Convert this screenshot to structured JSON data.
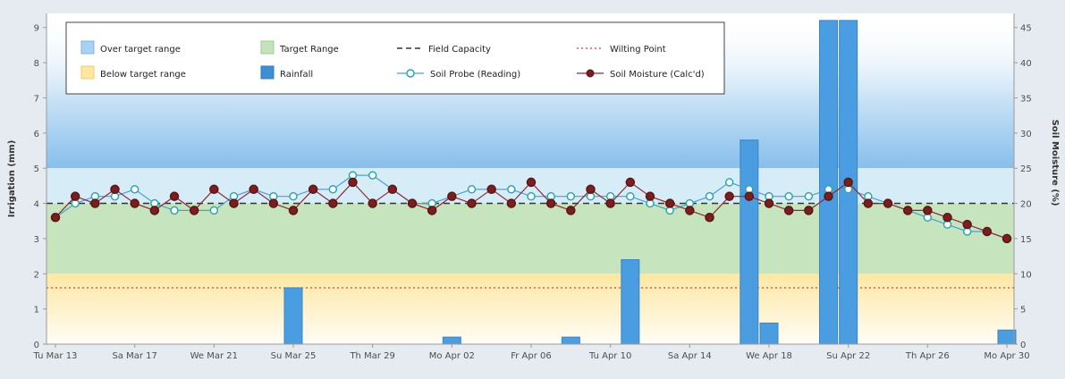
{
  "chart_data": {
    "type": "bar+line",
    "title": "",
    "ylabel": "Irrigation (mm)",
    "y2label": "Soil Moisture (%)",
    "ylim": [
      0,
      9.4
    ],
    "y2lim": [
      0,
      47
    ],
    "yticks": [
      "0",
      "1",
      "2",
      "3",
      "4",
      "5",
      "6",
      "7",
      "8",
      "9"
    ],
    "y2ticks": [
      "0",
      "5",
      "10",
      "15",
      "20",
      "25",
      "30",
      "35",
      "40",
      "45"
    ],
    "xlim": [
      0,
      48
    ],
    "xticks": [
      {
        "day": 0,
        "label": "Tu Mar 13"
      },
      {
        "day": 4,
        "label": "Sa Mar 17"
      },
      {
        "day": 8,
        "label": "We Mar 21"
      },
      {
        "day": 12,
        "label": "Su Mar 25"
      },
      {
        "day": 16,
        "label": "Th Mar 29"
      },
      {
        "day": 20,
        "label": "Mo Apr 02"
      },
      {
        "day": 24,
        "label": "Fr Apr 06"
      },
      {
        "day": 28,
        "label": "Tu Apr 10"
      },
      {
        "day": 32,
        "label": "Sa Apr 14"
      },
      {
        "day": 36,
        "label": "We Apr 18"
      },
      {
        "day": 40,
        "label": "Su Apr 22"
      },
      {
        "day": 44,
        "label": "Th Apr 26"
      },
      {
        "day": 48,
        "label": "Mo Apr 30"
      }
    ],
    "bands": {
      "over_target_range": [
        25,
        47
      ],
      "target_range": [
        10,
        20
      ],
      "below_target_range": [
        0,
        10
      ]
    },
    "field_capacity": 20,
    "wilting_point": 8,
    "legend": {
      "over": "Over target range",
      "target": "Target Range",
      "fc": "Field Capacity",
      "wp": "Wilting Point",
      "below": "Below target range",
      "rain": "Rainfall",
      "probe": "Soil Probe (Reading)",
      "calc": "Soil Moisture (Calc'd)"
    },
    "series": [
      {
        "name": "Rainfall",
        "unit": "mm",
        "days": [
          12,
          20,
          26,
          29,
          35,
          36,
          39,
          40,
          48
        ],
        "values": [
          1.6,
          0.2,
          0.2,
          2.4,
          5.8,
          0.6,
          9.2,
          9.2,
          0.4
        ]
      },
      {
        "name": "Soil Probe (Reading)",
        "unit": "%",
        "days": [
          0,
          1,
          2,
          3,
          4,
          5,
          6,
          7,
          8,
          9,
          10,
          11,
          12,
          13,
          14,
          15,
          16,
          17,
          18,
          19,
          20,
          21,
          22,
          23,
          24,
          25,
          26,
          27,
          28,
          29,
          30,
          31,
          32,
          33,
          34,
          35,
          36,
          37,
          38,
          39,
          40,
          41,
          42,
          43,
          44,
          45,
          46,
          47,
          48
        ],
        "values": [
          18,
          20,
          21,
          21,
          22,
          20,
          19,
          19,
          19,
          21,
          22,
          21,
          21,
          22,
          22,
          24,
          24,
          22,
          20,
          20,
          21,
          22,
          22,
          22,
          21,
          21,
          21,
          21,
          21,
          21,
          20,
          19,
          20,
          21,
          23,
          22,
          21,
          21,
          21,
          22,
          22,
          21,
          20,
          19,
          18,
          17,
          16,
          16,
          15
        ]
      },
      {
        "name": "Soil Moisture (Calc'd)",
        "unit": "%",
        "days": [
          0,
          1,
          2,
          3,
          4,
          5,
          6,
          7,
          8,
          9,
          10,
          11,
          12,
          13,
          14,
          15,
          16,
          17,
          18,
          19,
          20,
          21,
          22,
          23,
          24,
          25,
          26,
          27,
          28,
          29,
          30,
          31,
          32,
          33,
          34,
          35,
          36,
          37,
          38,
          39,
          40,
          41,
          42,
          43,
          44,
          45,
          46,
          47,
          48
        ],
        "values": [
          18,
          21,
          20,
          22,
          20,
          19,
          21,
          19,
          22,
          20,
          22,
          20,
          19,
          22,
          20,
          23,
          20,
          22,
          20,
          19,
          21,
          20,
          22,
          20,
          23,
          20,
          19,
          22,
          20,
          23,
          21,
          20,
          19,
          18,
          21,
          21,
          20,
          19,
          19,
          21,
          23,
          20,
          20,
          19,
          19,
          18,
          17,
          16,
          15
        ]
      }
    ]
  }
}
